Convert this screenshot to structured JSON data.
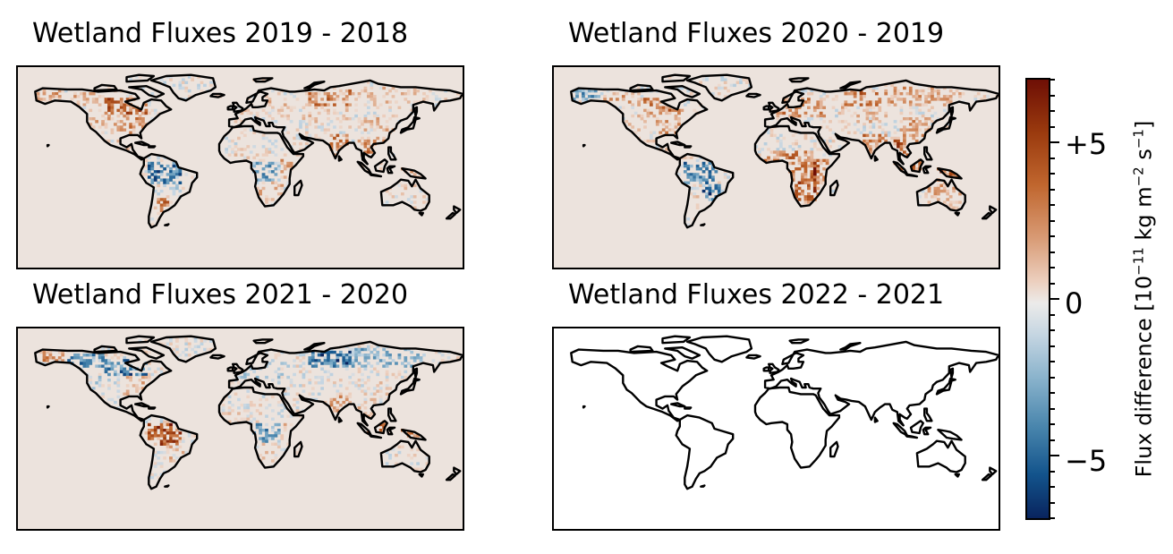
{
  "panels": [
    {
      "title": "Wetland Fluxes 2019 - 2018",
      "background": "#ece3dd",
      "has_data": true
    },
    {
      "title": "Wetland Fluxes 2020 - 2019",
      "background": "#ece3dd",
      "has_data": true
    },
    {
      "title": "Wetland Fluxes 2021 - 2020",
      "background": "#ece3dd",
      "has_data": true
    },
    {
      "title": "Wetland Fluxes 2022 - 2021",
      "background": "#ffffff",
      "has_data": false
    }
  ],
  "colorbar": {
    "label_prefix": "Flux difference [10",
    "label_exp1": "−11",
    "label_mid1": " kg m",
    "label_exp2": "−2",
    "label_mid2": " s",
    "label_exp3": "−1",
    "label_suffix": "]",
    "ticks": [
      "+5",
      "0",
      "−5"
    ],
    "colormap": "balance (blue negative, red positive)",
    "range": [
      -7,
      7
    ]
  },
  "colors": {
    "coastline": "#000000",
    "positive_strong": "#6e0f05",
    "positive": "#c0662e",
    "neutral": "#ecebea",
    "negative": "#4a86ad",
    "negative_strong": "#09245e"
  }
}
